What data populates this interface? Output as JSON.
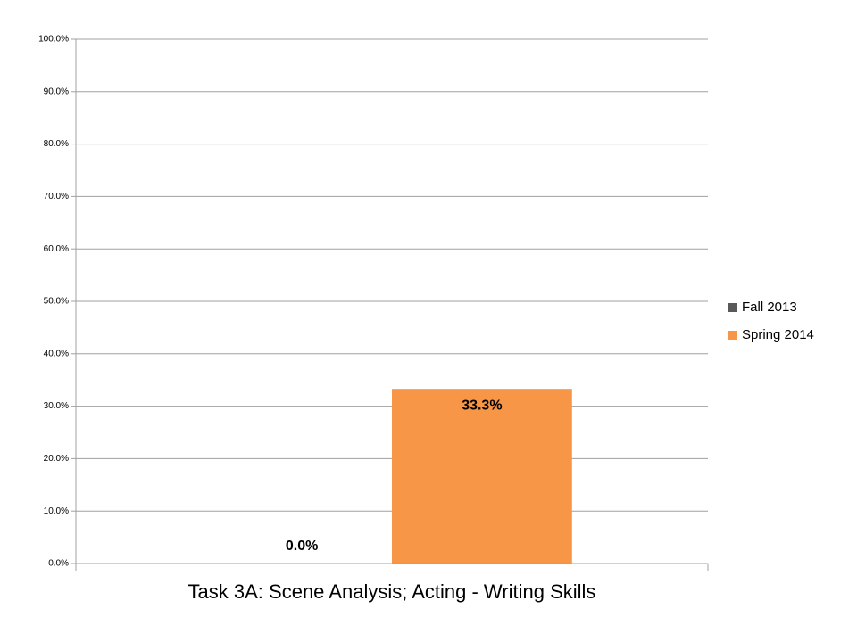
{
  "chart_data": {
    "type": "bar",
    "categories": [
      "Task 3A: Scene Analysis; Acting - Writing Skills"
    ],
    "series": [
      {
        "name": "Fall 2013",
        "color": "#595959",
        "values": [
          0.0
        ],
        "value_labels": [
          "0.0%"
        ]
      },
      {
        "name": "Spring 2014",
        "color": "#f79646",
        "values": [
          33.3
        ],
        "value_labels": [
          "33.3%"
        ]
      }
    ],
    "ylim": [
      0,
      100
    ],
    "yticks": [
      {
        "value": 0,
        "label": "0.0%"
      },
      {
        "value": 10,
        "label": "10.0%"
      },
      {
        "value": 20,
        "label": "20.0%"
      },
      {
        "value": 30,
        "label": "30.0%"
      },
      {
        "value": 40,
        "label": "40.0%"
      },
      {
        "value": 50,
        "label": "50.0%"
      },
      {
        "value": 60,
        "label": "60.0%"
      },
      {
        "value": 70,
        "label": "70.0%"
      },
      {
        "value": 80,
        "label": "80.0%"
      },
      {
        "value": 90,
        "label": "90.0%"
      },
      {
        "value": 100,
        "label": "100.0%"
      }
    ],
    "grid": true,
    "legend": "right"
  }
}
